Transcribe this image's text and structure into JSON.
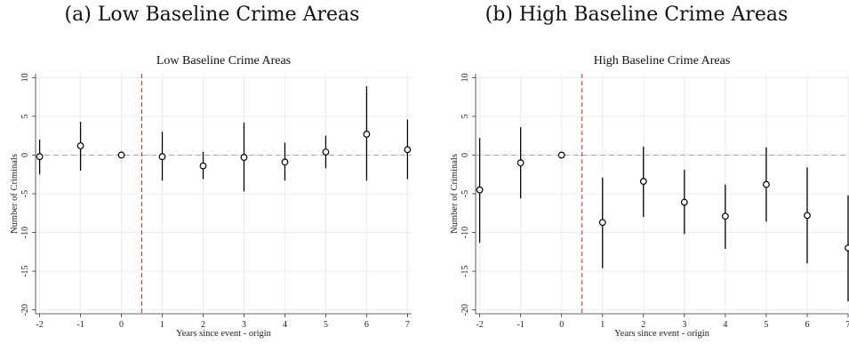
{
  "captions": [
    "(a) Low Baseline Crime Areas",
    "(b) High Baseline Crime Areas"
  ],
  "colors": {
    "event_line": "#d62728",
    "zero_line": "#aaaaaa",
    "grid": "#e6edf2",
    "marker": "#000000"
  },
  "chart_data": [
    {
      "type": "scatter",
      "title": "Low Baseline Crime Areas",
      "xlabel": "Years since event - origin",
      "ylabel": "Number of Criminals",
      "x": [
        -2,
        -1,
        0,
        1,
        2,
        3,
        4,
        5,
        6,
        7
      ],
      "y": [
        -0.2,
        1.2,
        0.0,
        -0.2,
        -1.4,
        -0.3,
        -0.9,
        0.4,
        2.7,
        0.7
      ],
      "ci_low": [
        -2.5,
        -2.0,
        null,
        -3.3,
        -3.1,
        -4.7,
        -3.3,
        -1.7,
        -3.3,
        -3.1
      ],
      "ci_high": [
        2.0,
        4.3,
        null,
        3.0,
        0.4,
        4.2,
        1.6,
        2.5,
        8.9,
        4.6
      ],
      "xticks": [
        -2,
        -1,
        0,
        1,
        2,
        3,
        4,
        5,
        6,
        7
      ],
      "yticks": [
        10,
        5,
        0,
        -5,
        -10,
        -15,
        -20
      ],
      "xlim": [
        -2.1,
        7.1
      ],
      "ylim": [
        -20.5,
        10.5
      ],
      "event_line_x": 0.5,
      "reference_line_y": 0,
      "grid": true
    },
    {
      "type": "scatter",
      "title": "High Baseline Crime Areas",
      "xlabel": "Years since event - origin",
      "ylabel": "Number of Criminals",
      "x": [
        -2,
        -1,
        0,
        1,
        2,
        3,
        4,
        5,
        6,
        7
      ],
      "y": [
        -4.5,
        -1.0,
        0.0,
        -8.7,
        -3.4,
        -6.1,
        -7.9,
        -3.8,
        -7.8,
        -12.0
      ],
      "ci_low": [
        -11.3,
        -5.6,
        null,
        -14.6,
        -8.0,
        -10.2,
        -12.1,
        -8.6,
        -14.0,
        -18.9
      ],
      "ci_high": [
        2.2,
        3.6,
        null,
        -2.9,
        1.1,
        -1.9,
        -3.8,
        1.0,
        -1.6,
        -5.2
      ],
      "xticks": [
        -2,
        -1,
        0,
        1,
        2,
        3,
        4,
        5,
        6,
        7
      ],
      "yticks": [
        10,
        5,
        0,
        -5,
        -10,
        -15,
        -20
      ],
      "xlim": [
        -2.1,
        7.0
      ],
      "ylim": [
        -20.5,
        10.5
      ],
      "event_line_x": 0.5,
      "reference_line_y": 0,
      "grid": true
    }
  ]
}
